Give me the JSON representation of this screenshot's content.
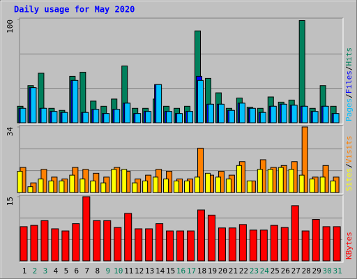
{
  "chart_data": {
    "type": "bar",
    "title": "Daily usage for May 2020",
    "categories": [
      "1",
      "2",
      "3",
      "4",
      "5",
      "6",
      "7",
      "8",
      "9",
      "10",
      "11",
      "12",
      "13",
      "14",
      "15",
      "16",
      "17",
      "18",
      "19",
      "20",
      "21",
      "22",
      "23",
      "24",
      "25",
      "26",
      "27",
      "28",
      "29",
      "30",
      "31"
    ],
    "category_colors": [
      "#000000",
      "#00805c",
      "#00805c",
      "#000000",
      "#000000",
      "#000000",
      "#000000",
      "#000000",
      "#00805c",
      "#00805c",
      "#000000",
      "#000000",
      "#000000",
      "#000000",
      "#000000",
      "#00805c",
      "#00805c",
      "#000000",
      "#000000",
      "#000000",
      "#000000",
      "#000000",
      "#00805c",
      "#00805c",
      "#000000",
      "#000000",
      "#000000",
      "#000000",
      "#000000",
      "#00805c",
      "#00805c"
    ],
    "legend_separator": "/",
    "panels": [
      {
        "ylim": [
          0,
          100
        ],
        "yticks": [
          100
        ],
        "series": [
          {
            "name": "Hits",
            "color": "#00805c",
            "values": [
              16,
              36,
              48,
              14,
              12,
              45,
              49,
              21,
              16,
              23,
              55,
              14,
              14,
              23,
              16,
              14,
              16,
              89,
              43,
              29,
              14,
              24,
              15,
              14,
              25,
              20,
              22,
              99,
              14,
              36,
              16
            ]
          },
          {
            "name": "Files",
            "color": "#0000ff",
            "values": [
              14,
              34,
              14,
              11,
              10,
              41,
              10,
              13,
              9,
              13,
              19,
              9,
              11,
              37,
              11,
              9,
              11,
              45,
              18,
              18,
              12,
              19,
              14,
              10,
              16,
              18,
              17,
              16,
              11,
              16,
              9
            ]
          },
          {
            "name": "Pages",
            "color": "#00c0ff",
            "values": [
              14,
              34,
              14,
              11,
              10,
              41,
              10,
              13,
              9,
              13,
              19,
              9,
              11,
              37,
              11,
              9,
              11,
              41,
              18,
              18,
              12,
              19,
              14,
              10,
              16,
              18,
              17,
              16,
              11,
              16,
              9
            ]
          }
        ]
      },
      {
        "ylim": [
          0,
          34
        ],
        "yticks": [
          34
        ],
        "series": [
          {
            "name": "Visits",
            "color": "#ff8000",
            "values": [
              13,
              5,
              12,
              8,
              7,
              13,
              12,
              10,
              8,
              13,
              11,
              7,
              9,
              12,
              11,
              7,
              7,
              23,
              9,
              11,
              9,
              16,
              6,
              17,
              13,
              14,
              16,
              34,
              8,
              14,
              8
            ]
          },
          {
            "name": "Sites",
            "color": "#ffff00",
            "values": [
              11,
              3,
              7,
              6,
              6,
              9,
              7,
              6,
              5,
              12,
              12,
              5,
              6,
              8,
              7,
              6,
              6,
              8,
              10,
              8,
              7,
              14,
              6,
              12,
              12,
              13,
              12,
              9,
              7,
              8,
              6
            ]
          }
        ]
      },
      {
        "ylim": [
          0,
          15
        ],
        "yticks": [
          15
        ],
        "series": [
          {
            "name": "KBytes",
            "color": "#ff0000",
            "values": [
              8.0,
              8.3,
              9.4,
              7.5,
              7.0,
              8.7,
              15,
              9.4,
              9.4,
              7.8,
              11.1,
              7.5,
              7.5,
              8.7,
              7.0,
              7.0,
              7.0,
              11.9,
              10.7,
              7.7,
              7.7,
              8.5,
              7.2,
              7.2,
              8.3,
              7.8,
              12.9,
              7.0,
              9.7,
              8.0,
              8.0
            ]
          }
        ]
      }
    ]
  }
}
